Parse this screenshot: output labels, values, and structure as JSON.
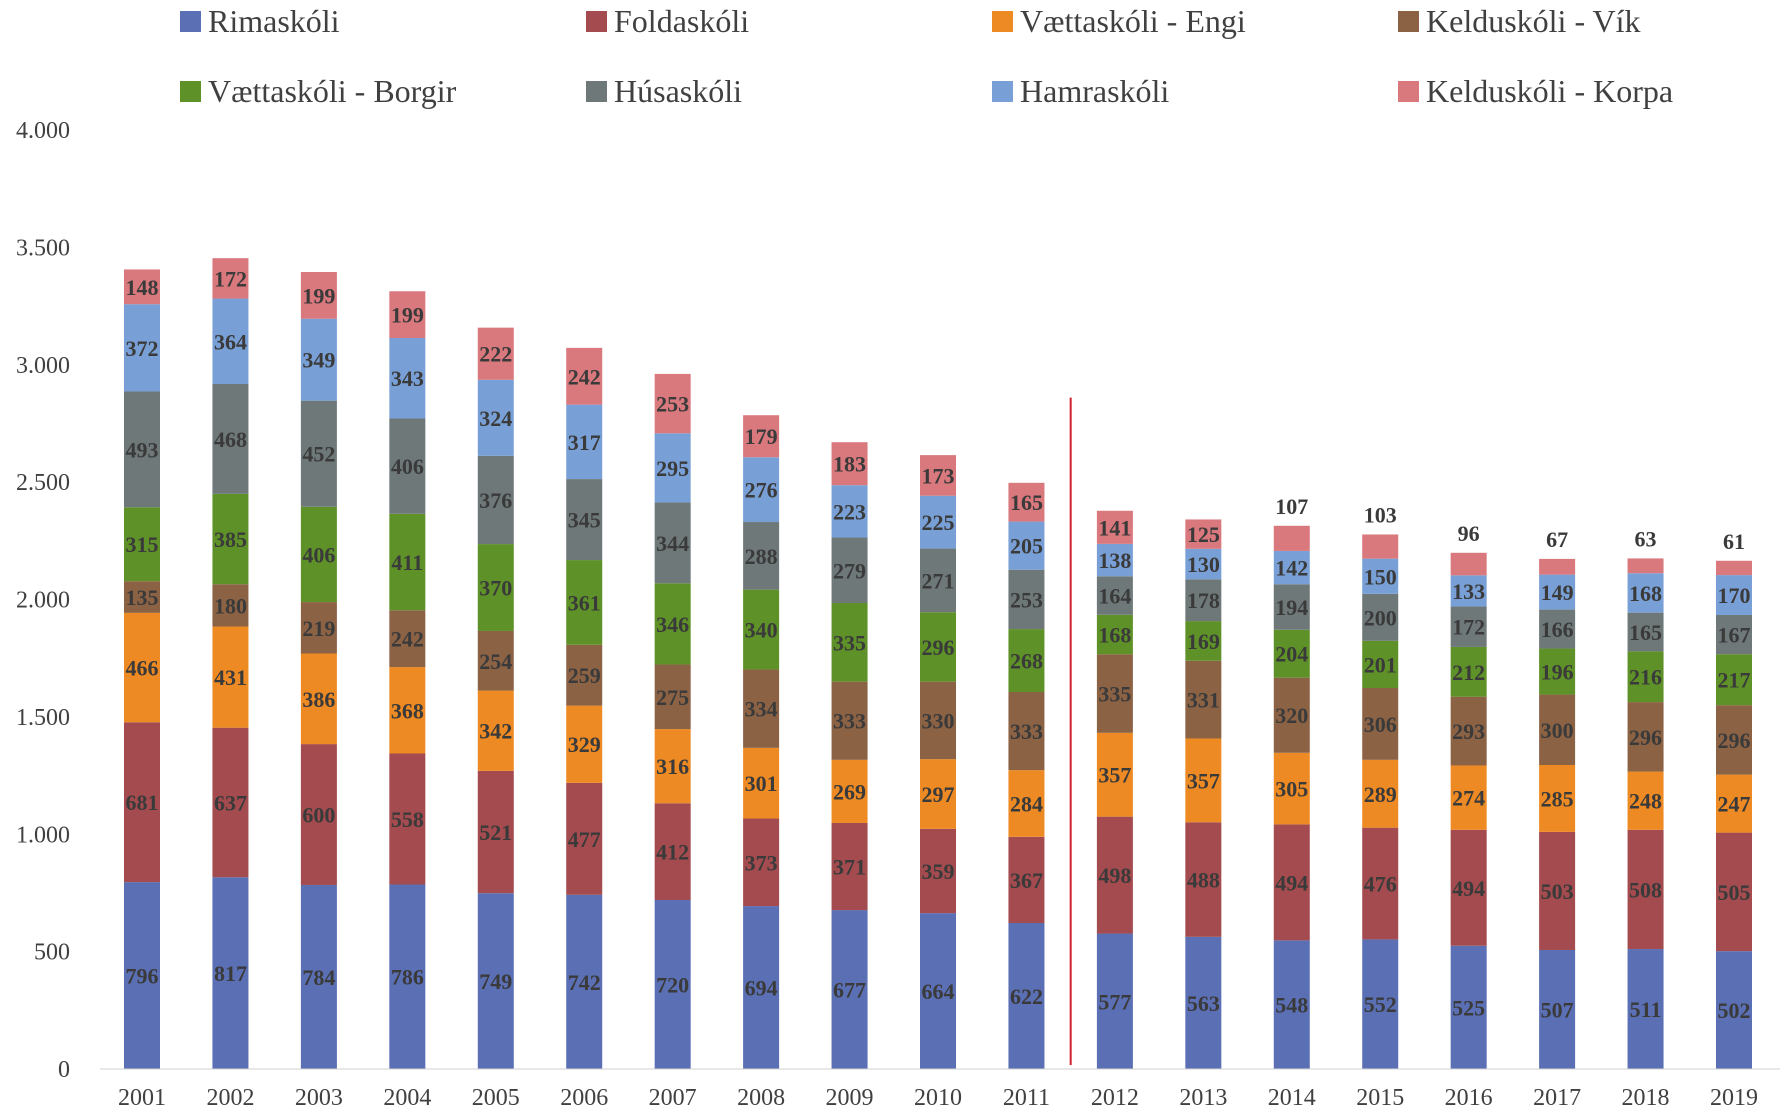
{
  "chart_data": {
    "type": "bar",
    "stacked": true,
    "categories": [
      "2001",
      "2002",
      "2003",
      "2004",
      "2005",
      "2006",
      "2007",
      "2008",
      "2009",
      "2010",
      "2011",
      "2012",
      "2013",
      "2014",
      "2015",
      "2016",
      "2017",
      "2018",
      "2019"
    ],
    "series": [
      {
        "name": "Rimaskóli",
        "color": "#5B6FB5",
        "values": [
          796,
          817,
          784,
          786,
          749,
          742,
          720,
          694,
          677,
          664,
          622,
          577,
          563,
          548,
          552,
          525,
          507,
          511,
          502
        ]
      },
      {
        "name": "Foldaskóli",
        "color": "#A34B4E",
        "values": [
          681,
          637,
          600,
          558,
          521,
          477,
          412,
          373,
          371,
          359,
          367,
          498,
          488,
          494,
          476,
          494,
          503,
          508,
          505
        ]
      },
      {
        "name": "Vættaskóli - Engi",
        "color": "#EE8A23",
        "values": [
          466,
          431,
          386,
          368,
          342,
          329,
          316,
          301,
          269,
          297,
          284,
          357,
          357,
          305,
          289,
          274,
          285,
          248,
          247
        ]
      },
      {
        "name": "Kelduskóli - Vík",
        "color": "#8C6245",
        "values": [
          135,
          180,
          219,
          242,
          254,
          259,
          275,
          334,
          333,
          330,
          333,
          335,
          331,
          320,
          306,
          293,
          300,
          296,
          296
        ]
      },
      {
        "name": "Vættaskóli - Borgir",
        "color": "#5E9128",
        "values": [
          315,
          385,
          406,
          411,
          370,
          361,
          346,
          340,
          335,
          296,
          268,
          168,
          169,
          204,
          201,
          212,
          196,
          216,
          217
        ]
      },
      {
        "name": "Húsaskóli",
        "color": "#6E7879",
        "values": [
          493,
          468,
          452,
          406,
          376,
          345,
          344,
          288,
          279,
          271,
          253,
          164,
          178,
          194,
          200,
          172,
          166,
          165,
          167
        ]
      },
      {
        "name": "Hamraskóli",
        "color": "#79A0D6",
        "values": [
          372,
          364,
          349,
          343,
          324,
          317,
          295,
          276,
          223,
          225,
          205,
          138,
          130,
          142,
          150,
          133,
          149,
          168,
          170
        ]
      },
      {
        "name": "Kelduskóli - Korpa",
        "color": "#D9787D",
        "values": [
          148,
          172,
          199,
          199,
          222,
          242,
          253,
          179,
          183,
          173,
          165,
          141,
          125,
          107,
          103,
          96,
          67,
          63,
          61
        ]
      }
    ],
    "y_axis": {
      "min": 0,
      "max": 4000,
      "tick_values": [
        0,
        500,
        1000,
        1500,
        2000,
        2500,
        3000,
        3500,
        4000
      ],
      "tick_labels": [
        "0",
        "500",
        "1.000",
        "1.500",
        "2.000",
        "2.500",
        "3.000",
        "3.500",
        "4.000"
      ]
    },
    "grid": false,
    "legend": {
      "position": "top",
      "columns": 4
    },
    "divider_after": "2011",
    "divider_color": "#D0202A",
    "top_label_outside_from": "2014"
  }
}
